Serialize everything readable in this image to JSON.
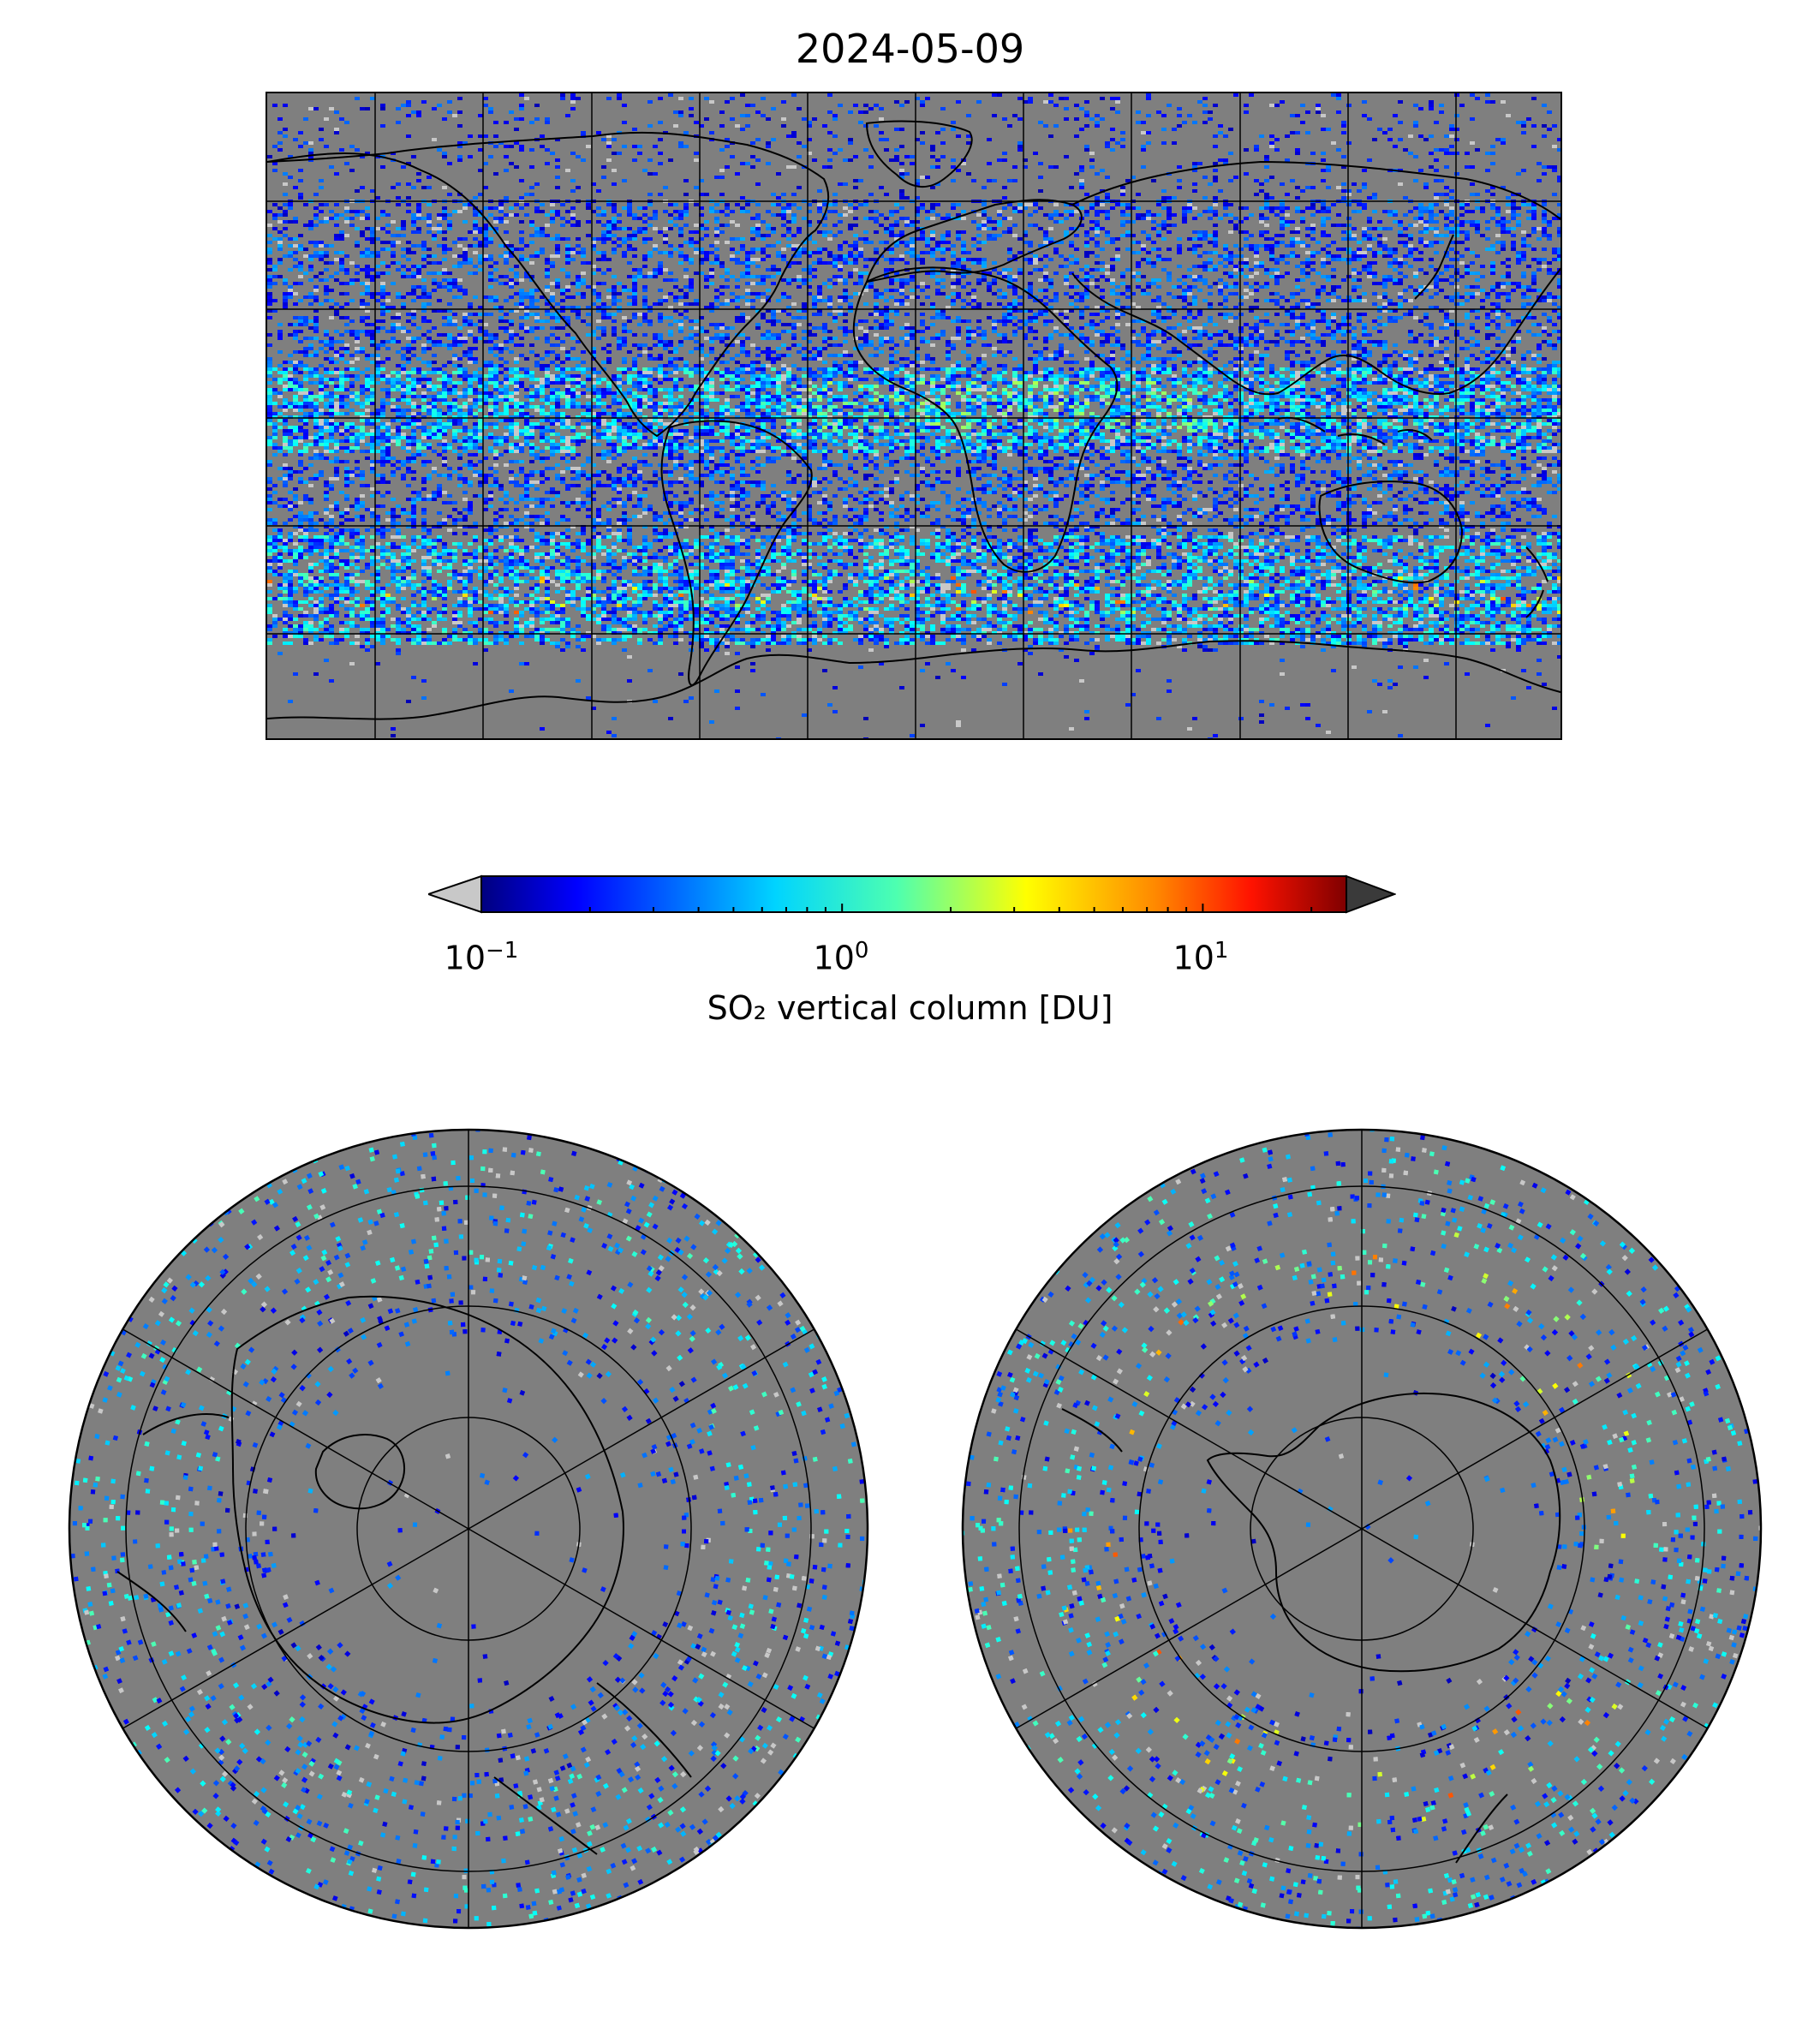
{
  "title": "2024-05-09",
  "colorbar": {
    "label": "SO₂ vertical column [DU]",
    "scale": "log",
    "range": [
      0.1,
      25
    ],
    "extend": "both",
    "under_color": "#c8c8c8",
    "over_color": "#3a3a3a",
    "colormap": "jet",
    "ticks": [
      {
        "base": "10",
        "exp": "−1",
        "value": 0.1
      },
      {
        "base": "10",
        "exp": "0",
        "value": 1
      },
      {
        "base": "10",
        "exp": "1",
        "value": 10
      }
    ]
  },
  "colors": {
    "background_gray": "#7f7f7f",
    "coastline": "#000000",
    "gridline": "#000000"
  },
  "maps": {
    "global": {
      "projection": "plate-carree",
      "gridlines": true
    },
    "north_polar": {
      "projection": "north-polar-stereographic",
      "gridlines": true
    },
    "south_polar": {
      "projection": "south-polar-stereographic",
      "gridlines": true
    }
  }
}
